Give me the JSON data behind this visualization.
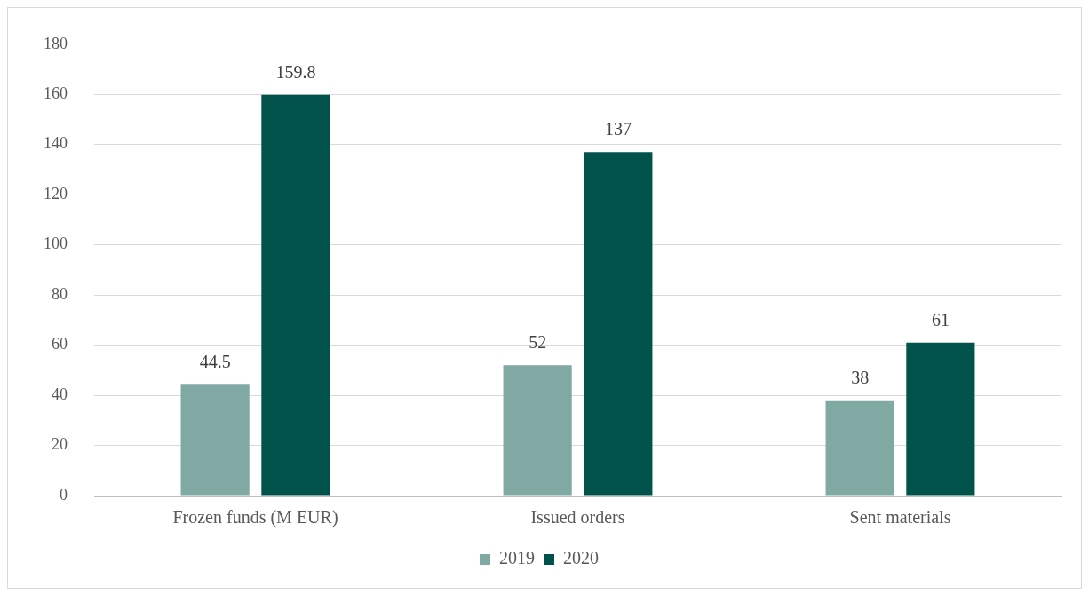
{
  "chart_data": {
    "type": "bar",
    "categories": [
      "Frozen funds (M EUR)",
      "Issued orders",
      "Sent materials"
    ],
    "series": [
      {
        "name": "2019",
        "color": "#7fa9a2",
        "values": [
          44.5,
          52,
          38
        ]
      },
      {
        "name": "2020",
        "color": "#00524a",
        "values": [
          159.8,
          137,
          61
        ]
      }
    ],
    "ylim": [
      0,
      180
    ],
    "yticks": [
      0,
      20,
      40,
      60,
      80,
      100,
      120,
      140,
      160,
      180
    ],
    "grid": "y",
    "legend": "bottom",
    "data_labels": true
  }
}
